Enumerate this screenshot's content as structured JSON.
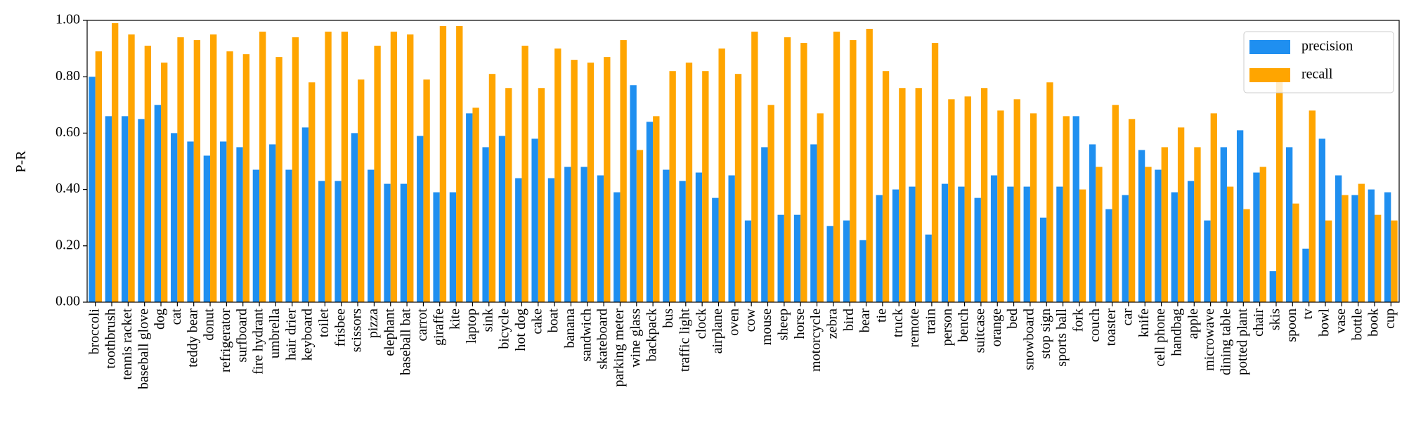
{
  "chart_data": {
    "type": "bar",
    "y_label": "P-R",
    "categories": [
      "broccoli",
      "toothbrush",
      "tennis racket",
      "baseball glove",
      "dog",
      "cat",
      "teddy bear",
      "donut",
      "refrigerator",
      "surfboard",
      "fire hydrant",
      "umbrella",
      "hair drier",
      "keyboard",
      "toilet",
      "frisbee",
      "scissors",
      "pizza",
      "elephant",
      "baseball bat",
      "carrot",
      "giraffe",
      "kite",
      "laptop",
      "sink",
      "bicycle",
      "hot dog",
      "cake",
      "boat",
      "banana",
      "sandwich",
      "skateboard",
      "parking meter",
      "wine glass",
      "backpack",
      "bus",
      "traffic light",
      "clock",
      "airplane",
      "oven",
      "cow",
      "mouse",
      "sheep",
      "horse",
      "motorcycle",
      "zebra",
      "bird",
      "bear",
      "tie",
      "truck",
      "remote",
      "train",
      "person",
      "bench",
      "suitcase",
      "orange",
      "bed",
      "snowboard",
      "stop sign",
      "sports ball",
      "fork",
      "couch",
      "toaster",
      "car",
      "knife",
      "cell phone",
      "handbag",
      "apple",
      "microwave",
      "dining table",
      "potted plant",
      "chair",
      "skis",
      "spoon",
      "tv",
      "bowl",
      "vase",
      "bottle",
      "book",
      "cup"
    ],
    "series": [
      {
        "name": "precision",
        "color": "#1f8ff0",
        "values": [
          0.8,
          0.66,
          0.66,
          0.65,
          0.7,
          0.6,
          0.57,
          0.52,
          0.57,
          0.55,
          0.47,
          0.56,
          0.47,
          0.62,
          0.43,
          0.43,
          0.6,
          0.47,
          0.42,
          0.42,
          0.59,
          0.39,
          0.39,
          0.67,
          0.55,
          0.59,
          0.44,
          0.58,
          0.44,
          0.48,
          0.48,
          0.45,
          0.39,
          0.77,
          0.64,
          0.47,
          0.43,
          0.46,
          0.37,
          0.45,
          0.29,
          0.55,
          0.31,
          0.31,
          0.56,
          0.27,
          0.29,
          0.22,
          0.38,
          0.4,
          0.41,
          0.24,
          0.42,
          0.41,
          0.37,
          0.45,
          0.41,
          0.41,
          0.3,
          0.41,
          0.66,
          0.56,
          0.33,
          0.38,
          0.54,
          0.47,
          0.39,
          0.43,
          0.29,
          0.55,
          0.61,
          0.46,
          0.11,
          0.55,
          0.19,
          0.58,
          0.45,
          0.38,
          0.4,
          0.39
        ]
      },
      {
        "name": "recall",
        "color": "#ffa500",
        "values": [
          0.89,
          0.99,
          0.95,
          0.91,
          0.85,
          0.94,
          0.93,
          0.95,
          0.89,
          0.88,
          0.96,
          0.87,
          0.94,
          0.78,
          0.96,
          0.96,
          0.79,
          0.91,
          0.96,
          0.95,
          0.79,
          0.98,
          0.98,
          0.69,
          0.81,
          0.76,
          0.91,
          0.76,
          0.9,
          0.86,
          0.85,
          0.87,
          0.93,
          0.54,
          0.66,
          0.82,
          0.85,
          0.82,
          0.9,
          0.81,
          0.96,
          0.7,
          0.94,
          0.92,
          0.67,
          0.96,
          0.93,
          0.97,
          0.82,
          0.76,
          0.76,
          0.92,
          0.72,
          0.73,
          0.76,
          0.68,
          0.72,
          0.67,
          0.78,
          0.66,
          0.4,
          0.48,
          0.7,
          0.65,
          0.48,
          0.55,
          0.62,
          0.55,
          0.67,
          0.41,
          0.33,
          0.48,
          0.8,
          0.35,
          0.68,
          0.29,
          0.38,
          0.42,
          0.31,
          0.29
        ]
      }
    ],
    "ylim": [
      0,
      1
    ],
    "yticks": [
      {
        "value": 0,
        "label": "0.00"
      },
      {
        "value": 0.2,
        "label": "0.20"
      },
      {
        "value": 0.4,
        "label": "0.40"
      },
      {
        "value": 0.6,
        "label": "0.60"
      },
      {
        "value": 0.8,
        "label": "0.80"
      },
      {
        "value": 1,
        "label": "1.00"
      }
    ],
    "legend": "upper right"
  }
}
